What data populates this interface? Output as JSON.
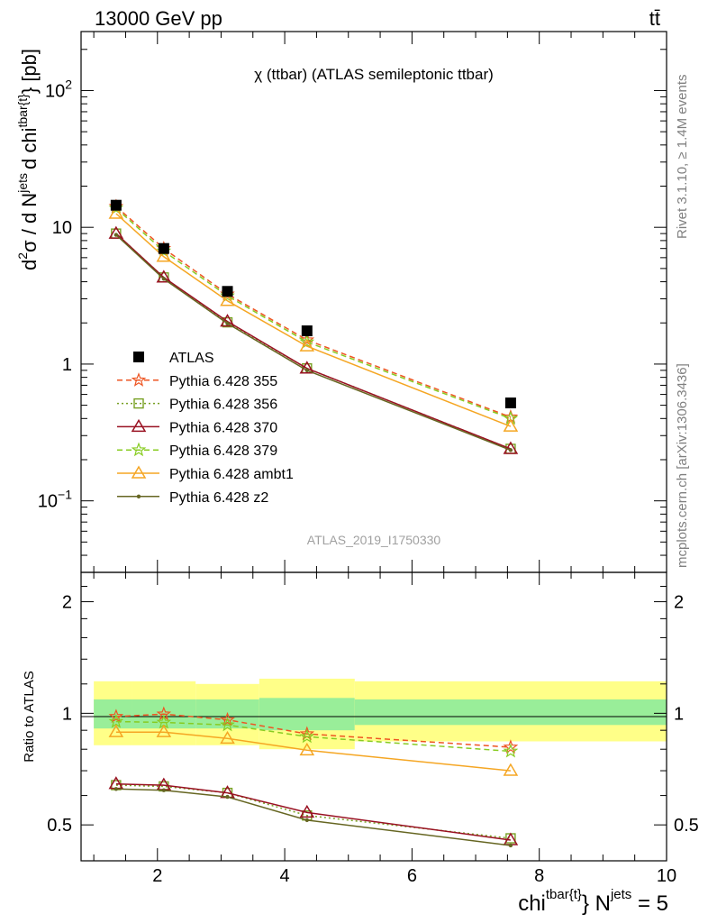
{
  "header": {
    "left": "13000 GeV pp",
    "right": "tt̄"
  },
  "main_panel": {
    "title": "χ (ttbar) (ATLAS semileptonic ttbar)",
    "ylabel": "d²σ / d N^jets d chi^tbar{t} [pb]",
    "ylabel_parts": {
      "a": "d",
      "b": "2",
      "c": "σ /  d N",
      "d": "jets",
      "e": "d chi",
      "f": "tbar{t}",
      "g": "} [pb]"
    },
    "analysis_id": "ATLAS_2019_I1750330",
    "ytick_labels": [
      {
        "base": "10",
        "exp": "2"
      },
      {
        "base": "10",
        "exp": ""
      },
      {
        "base": "1",
        "exp": ""
      },
      {
        "base": "10",
        "exp": "−1"
      }
    ]
  },
  "ratio_panel": {
    "ylabel": "Ratio to ATLAS",
    "ytick_labels": [
      "2",
      "1",
      "0.5"
    ]
  },
  "xaxis": {
    "label_parts": {
      "a": "chi",
      "b": "tbar{t}",
      "c": "} N",
      "d": "jets",
      "e": " = 5"
    },
    "tick_labels": [
      "2",
      "4",
      "6",
      "8",
      "10"
    ]
  },
  "side_labels": {
    "rivet": "Rivet 3.1.10, ≥ 1.4M events",
    "mcplots": "mcplots.cern.ch [arXiv:1306.3436]"
  },
  "legend": [
    {
      "label": "ATLAS",
      "color": "#000000",
      "marker": "square"
    },
    {
      "label": "Pythia 6.428 355",
      "color": "#ee5522",
      "marker": "star",
      "dash": "dashed"
    },
    {
      "label": "Pythia 6.428 356",
      "color": "#77a022",
      "marker": "open-square",
      "dash": "dotted"
    },
    {
      "label": "Pythia 6.428 370",
      "color": "#991122",
      "marker": "open-triangle",
      "dash": "solid"
    },
    {
      "label": "Pythia 6.428 379",
      "color": "#88cc22",
      "marker": "star",
      "dash": "dashed"
    },
    {
      "label": "Pythia 6.428 ambt1",
      "color": "#f5a623",
      "marker": "open-triangle",
      "dash": "solid"
    },
    {
      "label": "Pythia 6.428 z2",
      "color": "#666622",
      "marker": "dot",
      "dash": "solid"
    }
  ],
  "chart_data": {
    "type": "line",
    "xlim": [
      0.8,
      10.0
    ],
    "ylim": [
      0.03,
      270
    ],
    "yscale": "log",
    "ratio_ylim": [
      0.4,
      2.4
    ],
    "ratio_yscale": "log",
    "bin_edges": [
      1.0,
      1.6,
      2.6,
      3.6,
      5.1,
      10.0
    ],
    "x": [
      1.35,
      2.1,
      3.1,
      4.35,
      7.55
    ],
    "data": {
      "name": "ATLAS",
      "values": [
        14.5,
        7.0,
        3.4,
        1.75,
        0.52
      ],
      "ratio_band_total": [
        [
          0.82,
          1.22
        ],
        [
          0.82,
          1.22
        ],
        [
          0.82,
          1.2
        ],
        [
          0.8,
          1.24
        ],
        [
          0.84,
          1.22
        ]
      ],
      "ratio_band_stat": [
        [
          0.91,
          1.09
        ],
        [
          0.91,
          1.09
        ],
        [
          0.91,
          1.09
        ],
        [
          0.9,
          1.1
        ],
        [
          0.93,
          1.09
        ]
      ]
    },
    "series": [
      {
        "name": "Pythia 6.428 355",
        "values": [
          14.2,
          7.0,
          3.25,
          1.5,
          0.41
        ],
        "ratio": [
          0.98,
          0.995,
          0.96,
          0.88,
          0.81
        ]
      },
      {
        "name": "Pythia 6.428 356",
        "values": [
          9.0,
          4.3,
          2.02,
          0.93,
          0.24
        ],
        "ratio": [
          0.64,
          0.635,
          0.61,
          0.53,
          0.46
        ]
      },
      {
        "name": "Pythia 6.428 370",
        "values": [
          9.0,
          4.3,
          2.05,
          0.93,
          0.24
        ],
        "ratio": [
          0.645,
          0.64,
          0.61,
          0.54,
          0.455
        ]
      },
      {
        "name": "Pythia 6.428 379",
        "values": [
          13.8,
          6.7,
          3.15,
          1.45,
          0.4
        ],
        "ratio": [
          0.95,
          0.945,
          0.93,
          0.865,
          0.79
        ]
      },
      {
        "name": "Pythia 6.428 ambt1",
        "values": [
          12.6,
          6.1,
          2.9,
          1.35,
          0.35
        ],
        "ratio": [
          0.89,
          0.89,
          0.855,
          0.795,
          0.7
        ]
      },
      {
        "name": "Pythia 6.428 z2",
        "values": [
          8.8,
          4.2,
          1.98,
          0.9,
          0.235
        ],
        "ratio": [
          0.625,
          0.62,
          0.595,
          0.515,
          0.44
        ]
      }
    ]
  }
}
